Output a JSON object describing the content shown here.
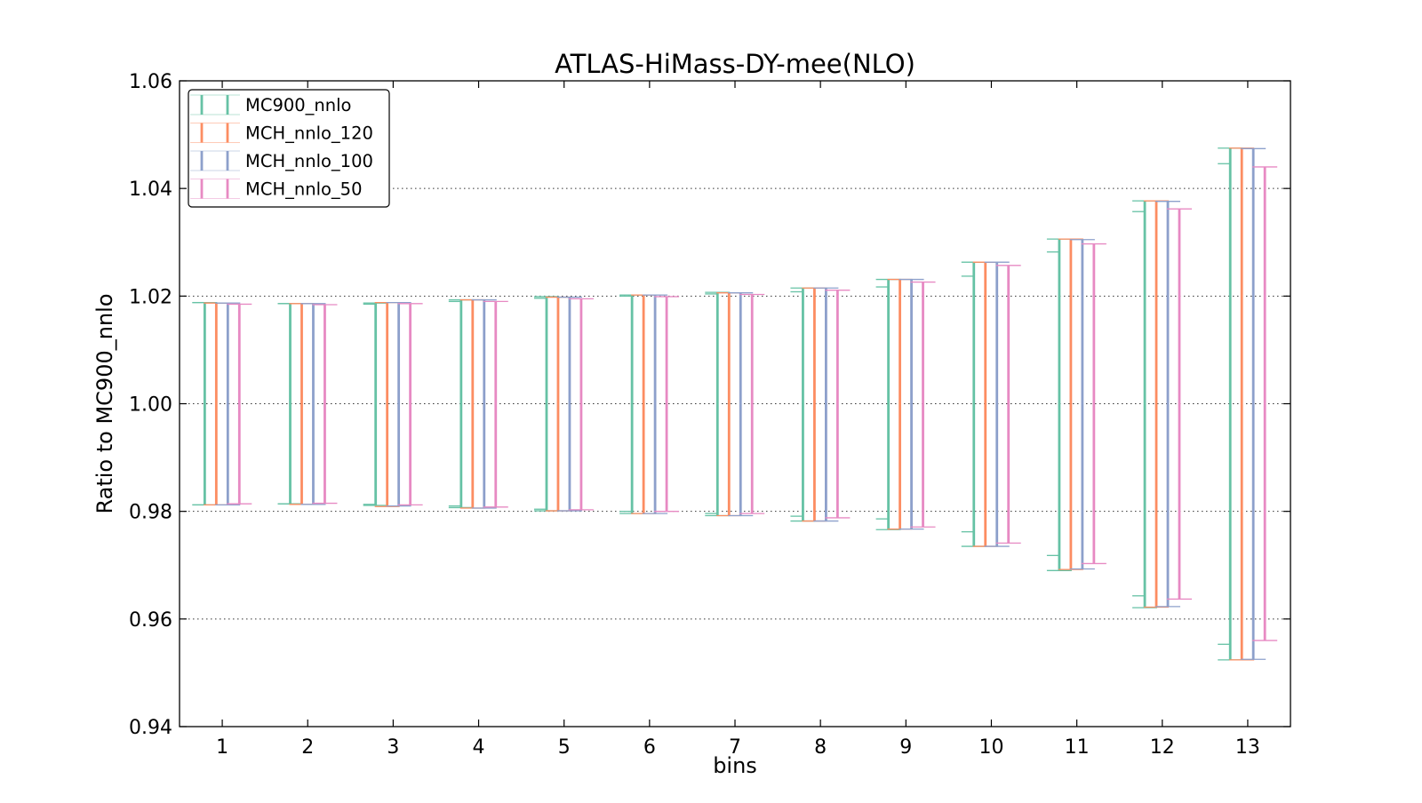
{
  "chart_data": {
    "type": "errorbar",
    "title": "ATLAS-HiMass-DY-mee(NLO)",
    "xlabel": "bins",
    "ylabel": "Ratio to MC900_nnlo",
    "ylim": [
      0.94,
      1.06
    ],
    "yticks": [
      "0.94",
      "0.96",
      "0.98",
      "1.00",
      "1.02",
      "1.04",
      "1.06"
    ],
    "xlim": [
      0.5,
      13.5
    ],
    "categories": [
      "1",
      "2",
      "3",
      "4",
      "5",
      "6",
      "7",
      "8",
      "9",
      "10",
      "11",
      "12",
      "13"
    ],
    "grid": "horizontal dotted at y ticks",
    "legend_position": "top-left",
    "series": [
      {
        "name": "MC900_nnlo",
        "color": "#66c2a5",
        "upper": [
          1.0188,
          1.0186,
          1.0187,
          1.0193,
          1.0199,
          1.0202,
          1.0207,
          1.0215,
          1.0231,
          1.0263,
          1.0306,
          1.0377,
          1.0475
        ],
        "lower": [
          0.9812,
          0.9814,
          0.9811,
          0.9807,
          0.9801,
          0.9796,
          0.9792,
          0.9782,
          0.9766,
          0.9735,
          0.969,
          0.9621,
          0.9524
        ],
        "cl_upper": [
          1.0188,
          1.0186,
          1.0185,
          1.019,
          1.0196,
          1.02,
          1.0204,
          1.0208,
          1.0217,
          1.0237,
          1.0282,
          1.0357,
          1.0446
        ],
        "cl_lower": [
          0.9812,
          0.9814,
          0.9813,
          0.981,
          0.9804,
          0.98,
          0.9796,
          0.9791,
          0.9786,
          0.9762,
          0.9718,
          0.9643,
          0.9553
        ]
      },
      {
        "name": "MCH_nnlo_120",
        "color": "#fc8d62",
        "upper": [
          1.0187,
          1.0186,
          1.0188,
          1.0193,
          1.0198,
          1.0202,
          1.0206,
          1.0215,
          1.0231,
          1.0263,
          1.0306,
          1.0377,
          1.0475
        ],
        "lower": [
          0.9812,
          0.9813,
          0.9809,
          0.9806,
          0.9801,
          0.9796,
          0.9792,
          0.9782,
          0.9767,
          0.9735,
          0.9692,
          0.9622,
          0.9524
        ]
      },
      {
        "name": "MCH_nnlo_100",
        "color": "#8da0cb",
        "upper": [
          1.0187,
          1.0186,
          1.0188,
          1.0193,
          1.0198,
          1.0202,
          1.0206,
          1.0215,
          1.0231,
          1.0263,
          1.0305,
          1.0376,
          1.0474
        ],
        "lower": [
          0.9812,
          0.9813,
          0.981,
          0.9806,
          0.9801,
          0.9796,
          0.9792,
          0.9782,
          0.9767,
          0.9735,
          0.9693,
          0.9623,
          0.9525
        ]
      },
      {
        "name": "MCH_nnlo_50",
        "color": "#e78ac3",
        "upper": [
          1.0185,
          1.0184,
          1.0186,
          1.019,
          1.0195,
          1.0199,
          1.0203,
          1.0211,
          1.0226,
          1.0257,
          1.0297,
          1.0362,
          1.044
        ],
        "lower": [
          0.9814,
          0.9815,
          0.9812,
          0.9808,
          0.9803,
          0.98,
          0.9796,
          0.9788,
          0.9771,
          0.9741,
          0.9703,
          0.9637,
          0.956
        ]
      }
    ]
  }
}
